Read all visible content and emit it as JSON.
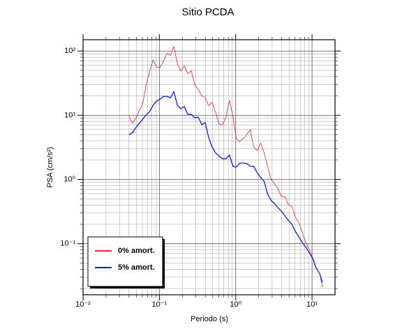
{
  "chart_data": {
    "type": "line",
    "title": "Sitio PCDA",
    "x_label": "Periodo (s)",
    "y_label": "PSA (cm/s²)",
    "x_scale": "log",
    "y_scale": "log",
    "grid": true,
    "legend_position": "lower left",
    "xlim": [
      0.01,
      20
    ],
    "ylim": [
      0.016,
      150
    ],
    "xticks": [
      {
        "value": 0.01,
        "label": "10⁻²"
      },
      {
        "value": 0.1,
        "label": "10⁻¹"
      },
      {
        "value": 1,
        "label": "10⁰"
      },
      {
        "value": 10,
        "label": "10¹"
      }
    ],
    "yticks": [
      {
        "value": 0.1,
        "label": "10⁻¹"
      },
      {
        "value": 1,
        "label": "10⁰"
      },
      {
        "value": 10,
        "label": "10¹"
      },
      {
        "value": 100,
        "label": "10²"
      }
    ],
    "x": [
      0.04,
      0.044,
      0.0491,
      0.0545,
      0.0605,
      0.0672,
      0.0746,
      0.0828,
      0.092,
      0.102,
      0.1135,
      0.126,
      0.14,
      0.155,
      0.172,
      0.191,
      0.212,
      0.236,
      0.262,
      0.291,
      0.323,
      0.359,
      0.398,
      0.442,
      0.491,
      0.545,
      0.605,
      0.672,
      0.746,
      0.828,
      0.92,
      1.02,
      1.13,
      1.26,
      1.4,
      1.55,
      1.72,
      1.91,
      2.12,
      2.36,
      2.62,
      2.91,
      3.23,
      3.59,
      3.98,
      4.42,
      4.91,
      5.45,
      6.05,
      6.72,
      7.46,
      8.28,
      9.2,
      10.2,
      11.3,
      12.6,
      13.7
    ],
    "series": [
      {
        "name": "0% amort.",
        "color": "#e8262b",
        "width": 0.8,
        "values": [
          9.8,
          7.5,
          8.9,
          11.7,
          15,
          30,
          49,
          73,
          56,
          56,
          70,
          92,
          85,
          118,
          63,
          49,
          59,
          44,
          49,
          30,
          25,
          20,
          19,
          14,
          16,
          11,
          7.3,
          7.1,
          9.4,
          17,
          9.6,
          4.3,
          3.9,
          4.4,
          5.0,
          6.0,
          3.2,
          2.8,
          3.7,
          2.6,
          1.6,
          1.0,
          0.86,
          0.71,
          0.54,
          0.54,
          0.4,
          0.38,
          0.26,
          0.21,
          0.15,
          0.104,
          0.081,
          0.06,
          0.042,
          0.034,
          0.021
        ]
      },
      {
        "name": "5% amort.",
        "color": "#0a1ee6",
        "width": 1.3,
        "values": [
          5.0,
          5.3,
          6.4,
          7.5,
          8.7,
          10.1,
          11.4,
          14.3,
          16.6,
          17.8,
          19.7,
          19.7,
          18.7,
          23.4,
          14.3,
          12.6,
          13.6,
          10.3,
          10.3,
          9.1,
          9.4,
          7.1,
          7.7,
          4.5,
          3.2,
          2.6,
          2.3,
          2.1,
          2.1,
          2.4,
          1.6,
          1.56,
          1.8,
          1.8,
          1.77,
          1.6,
          1.6,
          1.28,
          1.08,
          0.93,
          0.59,
          0.47,
          0.42,
          0.36,
          0.32,
          0.27,
          0.23,
          0.2,
          0.155,
          0.127,
          0.104,
          0.088,
          0.072,
          0.059,
          0.042,
          0.034,
          0.025
        ]
      }
    ]
  }
}
